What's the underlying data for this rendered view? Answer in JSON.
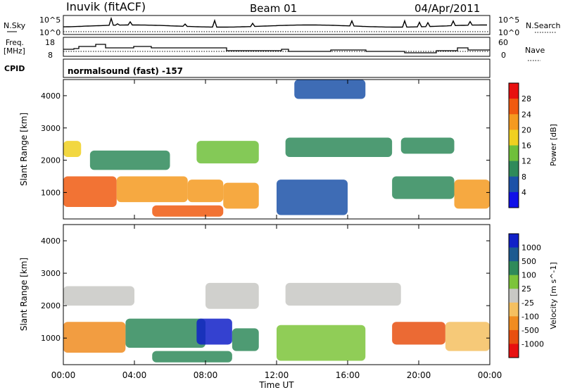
{
  "header": {
    "station": "Inuvik (fitACF)",
    "beam": "Beam 01",
    "date": "04/Apr/2011"
  },
  "nsky_panel": {
    "left_label": "N.Sky",
    "right_label": "N.Search",
    "tick_top": "10^5",
    "tick_bottom": "10^0",
    "right_tick_top": "10^5",
    "right_tick_bottom": "10^0"
  },
  "freq_panel": {
    "left_label_line1": "Freq.",
    "left_label_line2": "[MHz]",
    "right_label": "Nave",
    "tick_top": "18",
    "tick_bottom": "8",
    "right_tick_top": "60",
    "right_tick_bottom": "0"
  },
  "cpid_panel": {
    "label": "CPID",
    "value": "normalsound (fast) -157"
  },
  "colors": {
    "power": [
      "#1010e8",
      "#1c52a8",
      "#2f8a5a",
      "#6fbf3a",
      "#f0d020",
      "#f59a20",
      "#f05a10",
      "#e81010"
    ],
    "velocity": [
      "#1020c8",
      "#1c5a90",
      "#2f8a5a",
      "#7cc43a",
      "#c8c8c4",
      "#f5c060",
      "#f08c20",
      "#e85010",
      "#e81010"
    ]
  },
  "chart_data": [
    {
      "type": "heatmap",
      "title": "",
      "xlabel": "Time UT",
      "ylabel": "Slant Range [km]",
      "x_range_hours": [
        0,
        24
      ],
      "y_range_km": [
        180,
        4500
      ],
      "x_ticks": [
        "00:00",
        "04:00",
        "08:00",
        "12:00",
        "16:00",
        "20:00",
        "00:00"
      ],
      "y_ticks": [
        "1000",
        "2000",
        "3000",
        "4000"
      ],
      "colorbar": {
        "label": "Power [dB]",
        "ticks": [
          "28",
          "24",
          "20",
          "16",
          "12",
          "8",
          "4"
        ],
        "range": [
          0,
          32
        ]
      },
      "regions": [
        {
          "x": [
            0.0,
            3.0
          ],
          "y": [
            550,
            1500
          ],
          "value": 24
        },
        {
          "x": [
            3.0,
            7.0
          ],
          "y": [
            700,
            1500
          ],
          "value": 20
        },
        {
          "x": [
            7.0,
            9.0
          ],
          "y": [
            700,
            1400
          ],
          "value": 22
        },
        {
          "x": [
            9.0,
            11.0
          ],
          "y": [
            500,
            1300
          ],
          "value": 20
        },
        {
          "x": [
            5.0,
            9.0
          ],
          "y": [
            250,
            600
          ],
          "value": 26
        },
        {
          "x": [
            0.0,
            1.0
          ],
          "y": [
            2100,
            2600
          ],
          "value": 18
        },
        {
          "x": [
            1.5,
            6.0
          ],
          "y": [
            1700,
            2300
          ],
          "value": 8
        },
        {
          "x": [
            7.5,
            11.0
          ],
          "y": [
            1900,
            2600
          ],
          "value": 14
        },
        {
          "x": [
            12.5,
            18.5
          ],
          "y": [
            2100,
            2700
          ],
          "value": 10
        },
        {
          "x": [
            19.0,
            22.0
          ],
          "y": [
            2200,
            2700
          ],
          "value": 8
        },
        {
          "x": [
            12.0,
            16.0
          ],
          "y": [
            300,
            1400
          ],
          "value": 6
        },
        {
          "x": [
            18.5,
            22.0
          ],
          "y": [
            800,
            1500
          ],
          "value": 10
        },
        {
          "x": [
            22.0,
            24.0
          ],
          "y": [
            500,
            1400
          ],
          "value": 22
        },
        {
          "x": [
            13.0,
            17.0
          ],
          "y": [
            3900,
            4500
          ],
          "value": 6
        }
      ]
    },
    {
      "type": "heatmap",
      "title": "",
      "xlabel": "Time UT",
      "ylabel": "Slant Range [km]",
      "x_range_hours": [
        0,
        24
      ],
      "y_range_km": [
        180,
        4500
      ],
      "x_ticks": [
        "00:00",
        "04:00",
        "08:00",
        "12:00",
        "16:00",
        "20:00",
        "00:00"
      ],
      "y_ticks": [
        "1000",
        "2000",
        "3000",
        "4000"
      ],
      "colorbar": {
        "label": "Velocity [m s^-1]",
        "ticks": [
          "1000",
          "500",
          "100",
          "25",
          "-25",
          "-100",
          "-500",
          "-1000"
        ],
        "range": [
          -1000,
          1000
        ]
      },
      "regions": [
        {
          "x": [
            0.0,
            3.5
          ],
          "y": [
            550,
            1500
          ],
          "value": -250
        },
        {
          "x": [
            3.5,
            8.0
          ],
          "y": [
            700,
            1600
          ],
          "value": 100
        },
        {
          "x": [
            7.5,
            9.5
          ],
          "y": [
            800,
            1600
          ],
          "value": 700
        },
        {
          "x": [
            9.5,
            11.0
          ],
          "y": [
            600,
            1300
          ],
          "value": 200
        },
        {
          "x": [
            5.0,
            9.5
          ],
          "y": [
            250,
            600
          ],
          "value": 150
        },
        {
          "x": [
            0.0,
            4.0
          ],
          "y": [
            2000,
            2600
          ],
          "value": 0
        },
        {
          "x": [
            8.0,
            11.0
          ],
          "y": [
            1900,
            2700
          ],
          "value": 0
        },
        {
          "x": [
            12.5,
            19.0
          ],
          "y": [
            2000,
            2700
          ],
          "value": 0
        },
        {
          "x": [
            12.0,
            17.0
          ],
          "y": [
            300,
            1400
          ],
          "value": 60
        },
        {
          "x": [
            18.5,
            21.5
          ],
          "y": [
            800,
            1500
          ],
          "value": -300
        },
        {
          "x": [
            21.5,
            24.0
          ],
          "y": [
            600,
            1500
          ],
          "value": -100
        }
      ]
    }
  ]
}
